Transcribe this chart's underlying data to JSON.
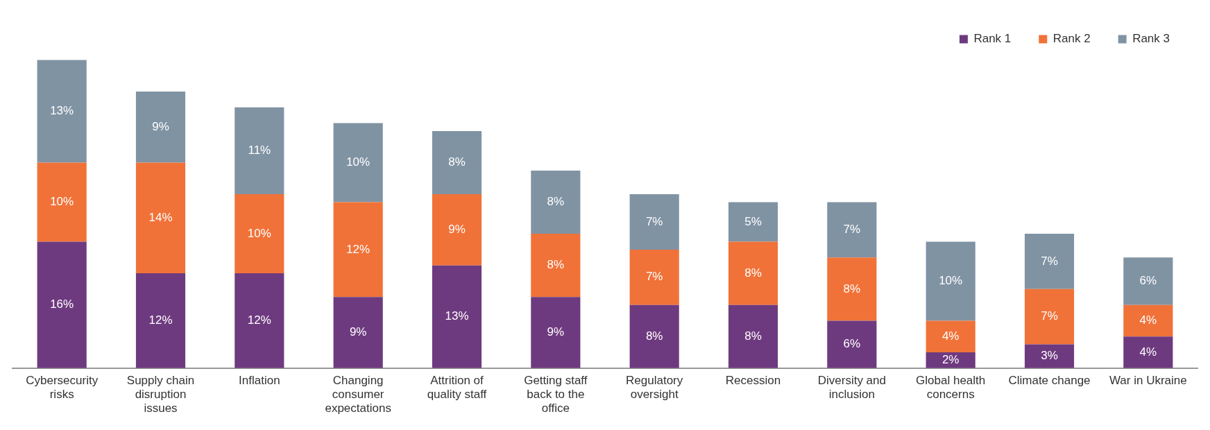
{
  "chart_data": {
    "type": "bar",
    "stacked": true,
    "legend": "top right",
    "grid": false,
    "categories": [
      "Cybersecurity risks",
      "Supply chain disruption issues",
      "Inflation",
      "Changing consumer expectations",
      "Attrition of quality staff",
      "Getting staff back to the office",
      "Regulatory oversight",
      "Recession",
      "Diversity and inclusion",
      "Global health concerns",
      "Climate change",
      "War in Ukraine"
    ],
    "series": [
      {
        "name": "Rank 1",
        "color": "#6e3a7f",
        "values": [
          16,
          12,
          12,
          9,
          13,
          9,
          8,
          8,
          6,
          2,
          3,
          4
        ],
        "value_labels": [
          "16%",
          "12%",
          "12%",
          "9%",
          "13%",
          "9%",
          "8%",
          "8%",
          "6%",
          "2%",
          "3%",
          "4%"
        ]
      },
      {
        "name": "Rank 2",
        "color": "#f07238",
        "values": [
          10,
          14,
          10,
          12,
          9,
          8,
          7,
          8,
          8,
          4,
          7,
          4
        ],
        "value_labels": [
          "10%",
          "14%",
          "10%",
          "12%",
          "9%",
          "8%",
          "7%",
          "8%",
          "8%",
          "4%",
          "7%",
          "4%"
        ]
      },
      {
        "name": "Rank 3",
        "color": "#8093a3",
        "values": [
          13,
          9,
          11,
          10,
          8,
          8,
          7,
          5,
          7,
          10,
          7,
          6
        ],
        "value_labels": [
          "13%",
          "9%",
          "11%",
          "10%",
          "8%",
          "8%",
          "7%",
          "5%",
          "7%",
          "10%",
          "7%",
          "6%"
        ]
      }
    ]
  }
}
